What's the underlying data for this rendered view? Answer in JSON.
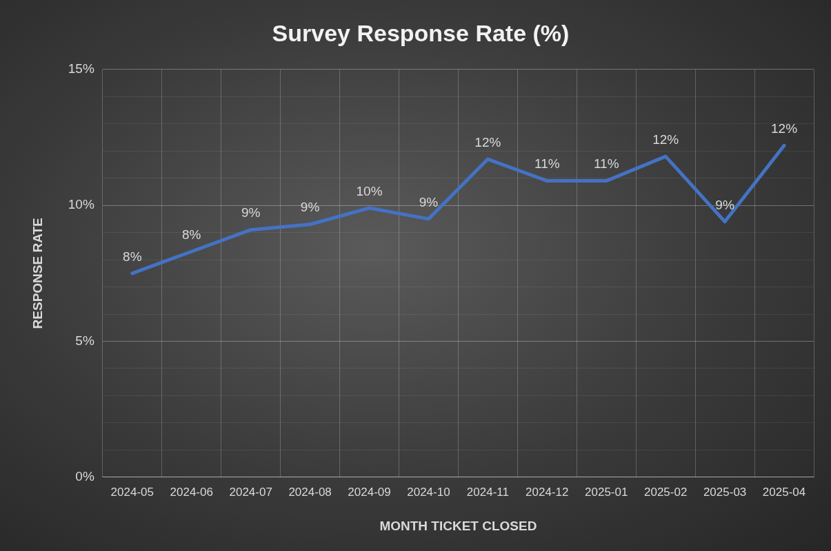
{
  "chart_data": {
    "type": "line",
    "title": "Survey Response Rate (%)",
    "xlabel": "MONTH TICKET CLOSED",
    "ylabel": "RESPONSE RATE",
    "categories": [
      "2024-05",
      "2024-06",
      "2024-07",
      "2024-08",
      "2024-09",
      "2024-10",
      "2024-11",
      "2024-12",
      "2025-01",
      "2025-02",
      "2025-03",
      "2025-04"
    ],
    "series": [
      {
        "color": "#4472c4",
        "values": [
          7.5,
          8.3,
          9.1,
          9.3,
          9.9,
          9.5,
          11.7,
          10.9,
          10.9,
          11.8,
          9.4,
          12.2
        ],
        "value_labels": [
          "8%",
          "8%",
          "9%",
          "9%",
          "10%",
          "9%",
          "12%",
          "11%",
          "11%",
          "12%",
          "9%",
          "12%"
        ]
      }
    ],
    "ylim": [
      0,
      15
    ],
    "yticks": [
      {
        "value": 0,
        "label": "0%"
      },
      {
        "value": 1,
        "label": null
      },
      {
        "value": 2,
        "label": null
      },
      {
        "value": 3,
        "label": null
      },
      {
        "value": 4,
        "label": null
      },
      {
        "value": 5,
        "label": "5%"
      },
      {
        "value": 6,
        "label": null
      },
      {
        "value": 7,
        "label": null
      },
      {
        "value": 8,
        "label": null
      },
      {
        "value": 9,
        "label": null
      },
      {
        "value": 10,
        "label": "10%"
      },
      {
        "value": 11,
        "label": null
      },
      {
        "value": 12,
        "label": null
      },
      {
        "value": 13,
        "label": null
      },
      {
        "value": 14,
        "label": null
      },
      {
        "value": 15,
        "label": "15%"
      }
    ],
    "grid": true,
    "legend": false,
    "marker": "none",
    "line_style": "solid"
  }
}
